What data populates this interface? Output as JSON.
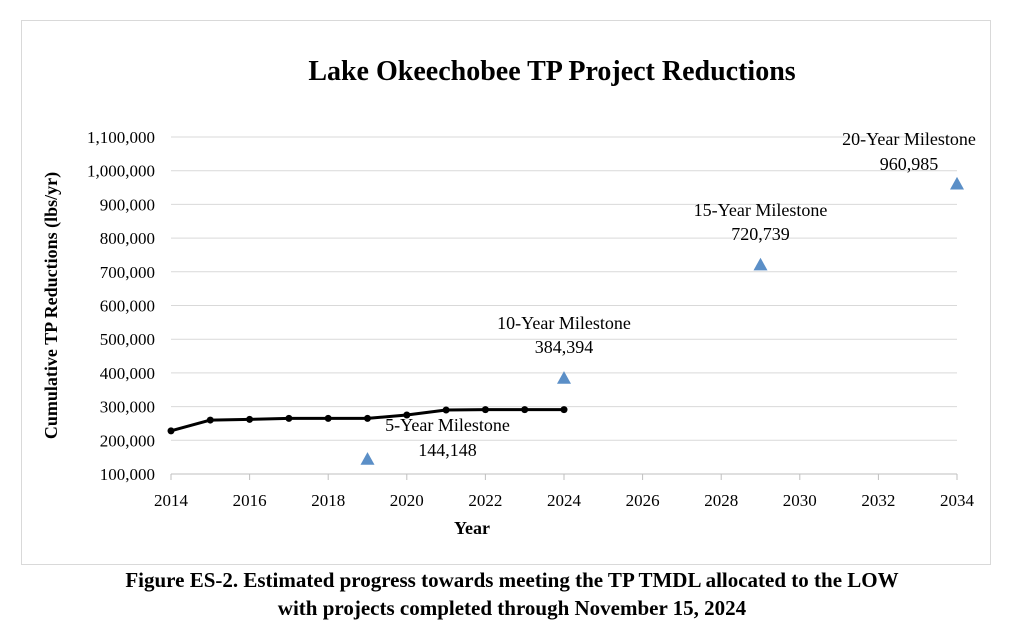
{
  "chart_data": {
    "type": "line",
    "title": "Lake Okeechobee TP Project Reductions",
    "xlabel": "Year",
    "ylabel": "Cumulative TP Reductions (lbs/yr)",
    "xlim": [
      2014,
      2034
    ],
    "ylim": [
      100000,
      1100000
    ],
    "x_ticks": [
      2014,
      2016,
      2018,
      2020,
      2022,
      2024,
      2026,
      2028,
      2030,
      2032,
      2034
    ],
    "y_ticks": [
      100000,
      200000,
      300000,
      400000,
      500000,
      600000,
      700000,
      800000,
      900000,
      1000000,
      1100000
    ],
    "x_tick_labels": [
      "2014",
      "2016",
      "2018",
      "2020",
      "2022",
      "2024",
      "2026",
      "2028",
      "2030",
      "2032",
      "2034"
    ],
    "y_tick_labels": [
      "100,000",
      "200,000",
      "300,000",
      "400,000",
      "500,000",
      "600,000",
      "700,000",
      "800,000",
      "900,000",
      "1,000,000",
      "1,100,000"
    ],
    "grid": true,
    "series": [
      {
        "type": "line",
        "color": "#000000",
        "x": [
          2014,
          2015,
          2016,
          2017,
          2018,
          2019,
          2020,
          2021,
          2022,
          2023,
          2024
        ],
        "y": [
          228000,
          260000,
          262000,
          265000,
          265000,
          265000,
          275000,
          290000,
          291000,
          291000,
          291000
        ]
      },
      {
        "type": "scatter",
        "marker": "triangle",
        "color": "#5b8fc7",
        "x": [
          2019,
          2024,
          2029,
          2034
        ],
        "y": [
          144148,
          384394,
          720739,
          960985
        ]
      }
    ],
    "annotations": [
      {
        "name": "5-Year Milestone",
        "value": "144,148"
      },
      {
        "name": "10-Year Milestone",
        "value": "384,394"
      },
      {
        "name": "15-Year Milestone",
        "value": "720,739"
      },
      {
        "name": "20-Year Milestone",
        "value": "960,985"
      }
    ]
  },
  "caption": {
    "line1": "Figure ES-2. Estimated progress towards meeting the TP TMDL allocated to the LOW",
    "line2": "with projects completed through November 15, 2024"
  }
}
